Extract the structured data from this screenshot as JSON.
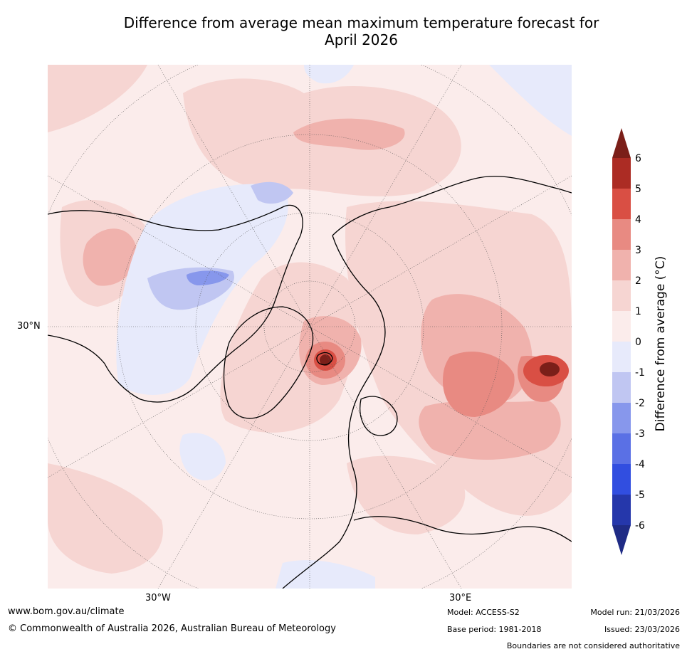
{
  "title": {
    "line1": "Difference from average mean maximum temperature forecast for",
    "line2": "April 2026"
  },
  "map": {
    "projection": "north-polar-stereographic",
    "regions": [
      "North America",
      "Greenland",
      "Arctic Ocean",
      "Europe",
      "Russia",
      "Asia"
    ],
    "gridlines": {
      "longitude_labels": [
        "30°W",
        "30°E"
      ],
      "latitude_labels": [
        "30°N"
      ]
    }
  },
  "colorbar": {
    "label": "Difference from average (°C)",
    "ticks": [
      "6",
      "5",
      "4",
      "3",
      "2",
      "1",
      "0",
      "-1",
      "-2",
      "-3",
      "-4",
      "-5",
      "-6"
    ],
    "levels_top_to_bottom": [
      {
        "range": ">6",
        "color": "#7b1f19"
      },
      {
        "range": "5 to 6",
        "color": "#ac2c24"
      },
      {
        "range": "4 to 5",
        "color": "#d94f44"
      },
      {
        "range": "3 to 4",
        "color": "#e88a82"
      },
      {
        "range": "2 to 3",
        "color": "#f0b2ad"
      },
      {
        "range": "1 to 2",
        "color": "#f6d5d2"
      },
      {
        "range": "0 to 1",
        "color": "#fbeceb"
      },
      {
        "range": "-1 to 0",
        "color": "#e7eafb"
      },
      {
        "range": "-2 to -1",
        "color": "#c0c6f2"
      },
      {
        "range": "-3 to -2",
        "color": "#8797ec"
      },
      {
        "range": "-4 to -3",
        "color": "#5a70e5"
      },
      {
        "range": "-5 to -4",
        "color": "#314ee0"
      },
      {
        "range": "-6 to -5",
        "color": "#2537ab"
      },
      {
        "range": "<-6",
        "color": "#1f2b85"
      }
    ]
  },
  "footer": {
    "website": "www.bom.gov.au/climate",
    "copyright": "© Commonwealth of Australia 2026, Australian Bureau of Meteorology",
    "model": "Model: ACCESS-S2",
    "model_run": "Model run: 21/03/2026",
    "base_period": "Base period: 1981-2018",
    "issued": "Issued: 23/03/2026",
    "disclaimer": "Boundaries are not considered authoritative"
  }
}
